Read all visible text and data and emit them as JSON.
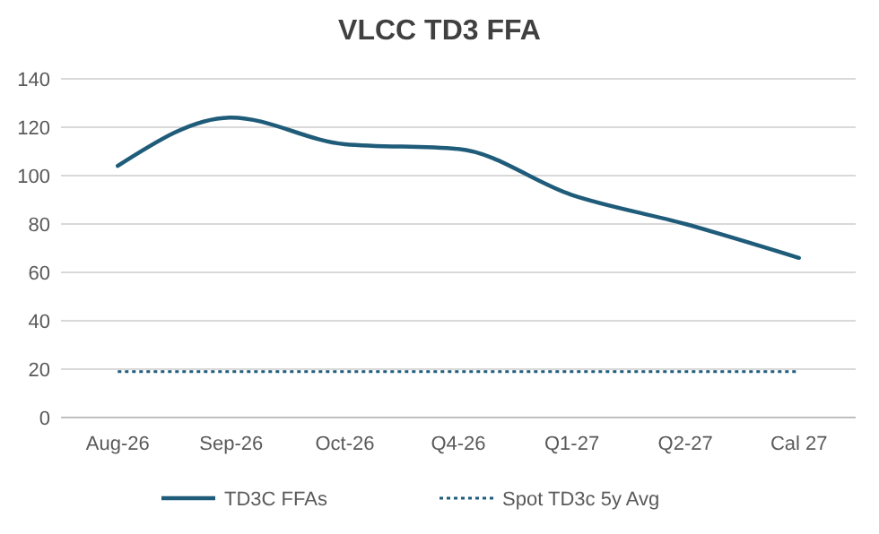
{
  "chart_data": {
    "type": "line",
    "title": "VLCC TD3 FFA",
    "categories": [
      "Aug-26",
      "Sep-26",
      "Oct-26",
      "Q4-26",
      "Q1-27",
      "Q2-27",
      "Cal 27"
    ],
    "series": [
      {
        "name": "TD3C FFAs",
        "color": "#1f5c7a",
        "values": [
          104,
          124,
          113,
          111,
          92,
          80,
          66
        ],
        "line_style": "solid"
      },
      {
        "name": "Spot TD3c 5y Avg",
        "color": "#1f5c7a",
        "values": [
          19,
          19,
          19,
          19,
          19,
          19,
          19
        ],
        "line_style": "dotted"
      }
    ],
    "ylim": [
      0,
      140
    ],
    "yticks": [
      0,
      20,
      40,
      60,
      80,
      100,
      120,
      140
    ],
    "grid": "y",
    "legend": "bottom"
  }
}
